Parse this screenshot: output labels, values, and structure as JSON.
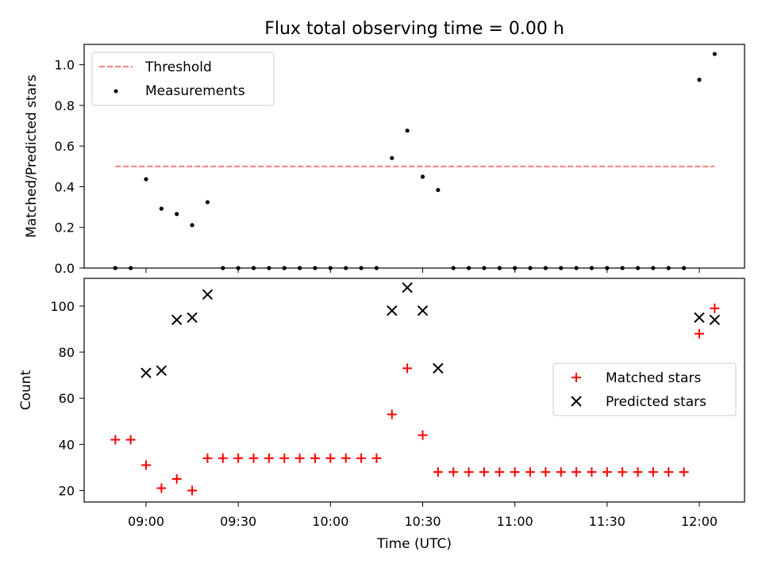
{
  "chart_data": [
    {
      "type": "scatter",
      "title": "Flux total observing time = 0.00 h",
      "ylabel": "Matched/Predicted stars",
      "xlabel": "",
      "ylim": [
        0,
        1.1
      ],
      "yticks": [
        "0.0",
        "0.2",
        "0.4",
        "0.6",
        "0.8",
        "1.0"
      ],
      "legend_position": "upper-left",
      "series": [
        {
          "name": "Threshold",
          "kind": "dashed-line",
          "color": "#ff7f7f",
          "x": [
            "08:50",
            "12:05"
          ],
          "y": [
            0.5,
            0.5
          ]
        },
        {
          "name": "Measurements",
          "kind": "dot",
          "color": "#000000",
          "x": [
            "08:50",
            "08:55",
            "09:00",
            "09:05",
            "09:10",
            "09:15",
            "09:20",
            "09:25",
            "09:30",
            "09:35",
            "09:40",
            "09:45",
            "09:50",
            "09:55",
            "10:00",
            "10:05",
            "10:10",
            "10:15",
            "10:20",
            "10:25",
            "10:30",
            "10:35",
            "10:40",
            "10:45",
            "10:50",
            "10:55",
            "11:00",
            "11:05",
            "11:10",
            "11:15",
            "11:20",
            "11:25",
            "11:30",
            "11:35",
            "11:40",
            "11:45",
            "11:50",
            "11:55",
            "12:00",
            "12:05"
          ],
          "y": [
            0,
            0,
            0.437,
            0.292,
            0.266,
            0.211,
            0.324,
            0,
            0,
            0,
            0,
            0,
            0,
            0,
            0,
            0,
            0,
            0,
            0.541,
            0.676,
            0.449,
            0.384,
            0,
            0,
            0,
            0,
            0,
            0,
            0,
            0,
            0,
            0,
            0,
            0,
            0,
            0,
            0,
            0,
            0.926,
            1.053
          ]
        }
      ]
    },
    {
      "type": "scatter",
      "title": "",
      "ylabel": "Count",
      "xlabel": "Time (UTC)",
      "ylim": [
        15,
        112
      ],
      "yticks": [
        "20",
        "40",
        "60",
        "80",
        "100"
      ],
      "xticks": [
        "09:00",
        "09:30",
        "10:00",
        "10:30",
        "11:00",
        "11:30",
        "12:00"
      ],
      "legend_position": "center-right",
      "series": [
        {
          "name": "Matched stars",
          "marker": "plus",
          "color": "#ff0000",
          "x": [
            "08:50",
            "08:55",
            "09:00",
            "09:05",
            "09:10",
            "09:15",
            "09:20",
            "09:25",
            "09:30",
            "09:35",
            "09:40",
            "09:45",
            "09:50",
            "09:55",
            "10:00",
            "10:05",
            "10:10",
            "10:15",
            "10:20",
            "10:25",
            "10:30",
            "10:35",
            "10:40",
            "10:45",
            "10:50",
            "10:55",
            "11:00",
            "11:05",
            "11:10",
            "11:15",
            "11:20",
            "11:25",
            "11:30",
            "11:35",
            "11:40",
            "11:45",
            "11:50",
            "11:55",
            "12:00",
            "12:05"
          ],
          "y": [
            42,
            42,
            31,
            21,
            25,
            20,
            34,
            34,
            34,
            34,
            34,
            34,
            34,
            34,
            34,
            34,
            34,
            34,
            53,
            73,
            44,
            28,
            28,
            28,
            28,
            28,
            28,
            28,
            28,
            28,
            28,
            28,
            28,
            28,
            28,
            28,
            28,
            28,
            88,
            99
          ]
        },
        {
          "name": "Predicted stars",
          "marker": "x",
          "color": "#000000",
          "x": [
            "09:00",
            "09:05",
            "09:10",
            "09:15",
            "09:20",
            "10:20",
            "10:25",
            "10:30",
            "10:35",
            "12:00",
            "12:05"
          ],
          "y": [
            71,
            72,
            94,
            95,
            105,
            98,
            108,
            98,
            73,
            95,
            94
          ]
        }
      ]
    }
  ]
}
